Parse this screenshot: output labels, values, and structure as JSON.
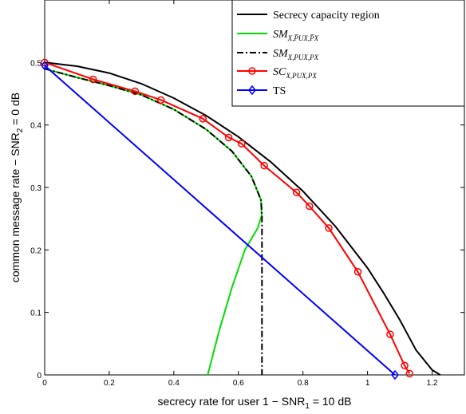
{
  "chart_data": {
    "type": "line",
    "title": "",
    "xlabel": "secrecy rate for user 1 − SNR",
    "xlabel_sub": "1",
    "xlabel_tail": " = 10 dB",
    "ylabel": "common message rate − SNR",
    "ylabel_sub": "2",
    "ylabel_tail": " = 0 dB",
    "xlim": [
      0,
      1.3
    ],
    "ylim": [
      0,
      0.6
    ],
    "xticks": [
      0,
      0.2,
      0.4,
      0.6,
      0.8,
      1,
      1.2
    ],
    "xtick_labels": [
      "0",
      "0.2",
      "0.4",
      "0.6",
      "0.8",
      "1",
      "1.2"
    ],
    "yticks": [
      0,
      0.1,
      0.2,
      0.3,
      0.4,
      0.5
    ],
    "ytick_labels": [
      "0",
      "0.1",
      "0.2",
      "0.3",
      "0.4",
      "0.5"
    ],
    "grid": false,
    "legend_position": "top-right",
    "series": [
      {
        "name": "Secrecy capacity region",
        "color": "#000000",
        "style": "solid",
        "marker": "none",
        "x": [
          0,
          0.1,
          0.2,
          0.3,
          0.4,
          0.5,
          0.6,
          0.7,
          0.8,
          0.9,
          1.0,
          1.05,
          1.1,
          1.15,
          1.2,
          1.225
        ],
        "y": [
          0.5,
          0.494,
          0.483,
          0.466,
          0.443,
          0.415,
          0.381,
          0.341,
          0.294,
          0.238,
          0.171,
          0.131,
          0.088,
          0.04,
          0.008,
          0
        ]
      },
      {
        "name": "SM",
        "name_sub": "X,P̅UX,P̅X",
        "color": "#00dd00",
        "style": "solid",
        "marker": "none",
        "x": [
          0,
          0.1,
          0.2,
          0.3,
          0.4,
          0.5,
          0.58,
          0.64,
          0.67,
          0.672,
          0.66,
          0.62,
          0.58,
          0.54,
          0.505
        ],
        "y": [
          0.49,
          0.476,
          0.463,
          0.448,
          0.425,
          0.393,
          0.358,
          0.318,
          0.28,
          0.255,
          0.235,
          0.2,
          0.14,
          0.07,
          0
        ]
      },
      {
        "name": "SM",
        "name_sub": "X,PUX,PX",
        "color": "#000000",
        "style": "dashdot",
        "marker": "none",
        "x": [
          0,
          0.1,
          0.2,
          0.3,
          0.4,
          0.5,
          0.58,
          0.64,
          0.67,
          0.673,
          0.673
        ],
        "y": [
          0.49,
          0.476,
          0.463,
          0.448,
          0.425,
          0.393,
          0.358,
          0.318,
          0.28,
          0.255,
          0
        ]
      },
      {
        "name": "SC",
        "name_sub": "X,PUX,PX",
        "color": "#ff0000",
        "style": "solid",
        "marker": "circle",
        "x": [
          0,
          0.15,
          0.28,
          0.36,
          0.49,
          0.57,
          0.61,
          0.68,
          0.78,
          0.82,
          0.88,
          0.97,
          1.07,
          1.115,
          1.13
        ],
        "y": [
          0.5,
          0.473,
          0.454,
          0.44,
          0.41,
          0.38,
          0.37,
          0.335,
          0.292,
          0.27,
          0.235,
          0.165,
          0.065,
          0.015,
          0.002
        ]
      },
      {
        "name": "TS",
        "color": "#0000ff",
        "style": "solid",
        "marker": "diamond",
        "x": [
          0,
          1.085
        ],
        "y": [
          0.495,
          0
        ]
      }
    ]
  }
}
